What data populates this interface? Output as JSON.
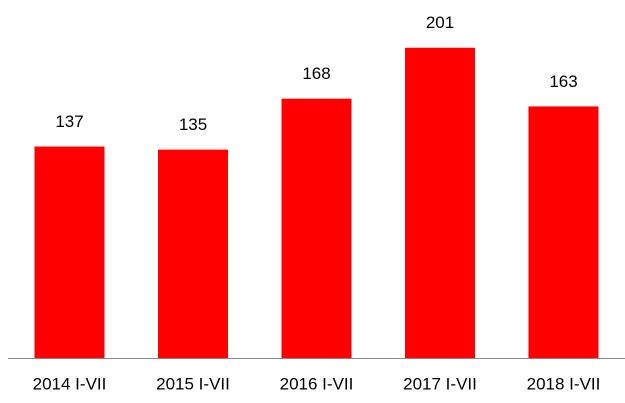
{
  "chart_data": {
    "type": "bar",
    "categories": [
      "2014 I-VII",
      "2015 I-VII",
      "2016 I-VII",
      "2017 I-VII",
      "2018 I-VII"
    ],
    "values": [
      137,
      135,
      168,
      201,
      163
    ],
    "color": "#ff0000",
    "ylim": [
      0,
      230
    ]
  }
}
